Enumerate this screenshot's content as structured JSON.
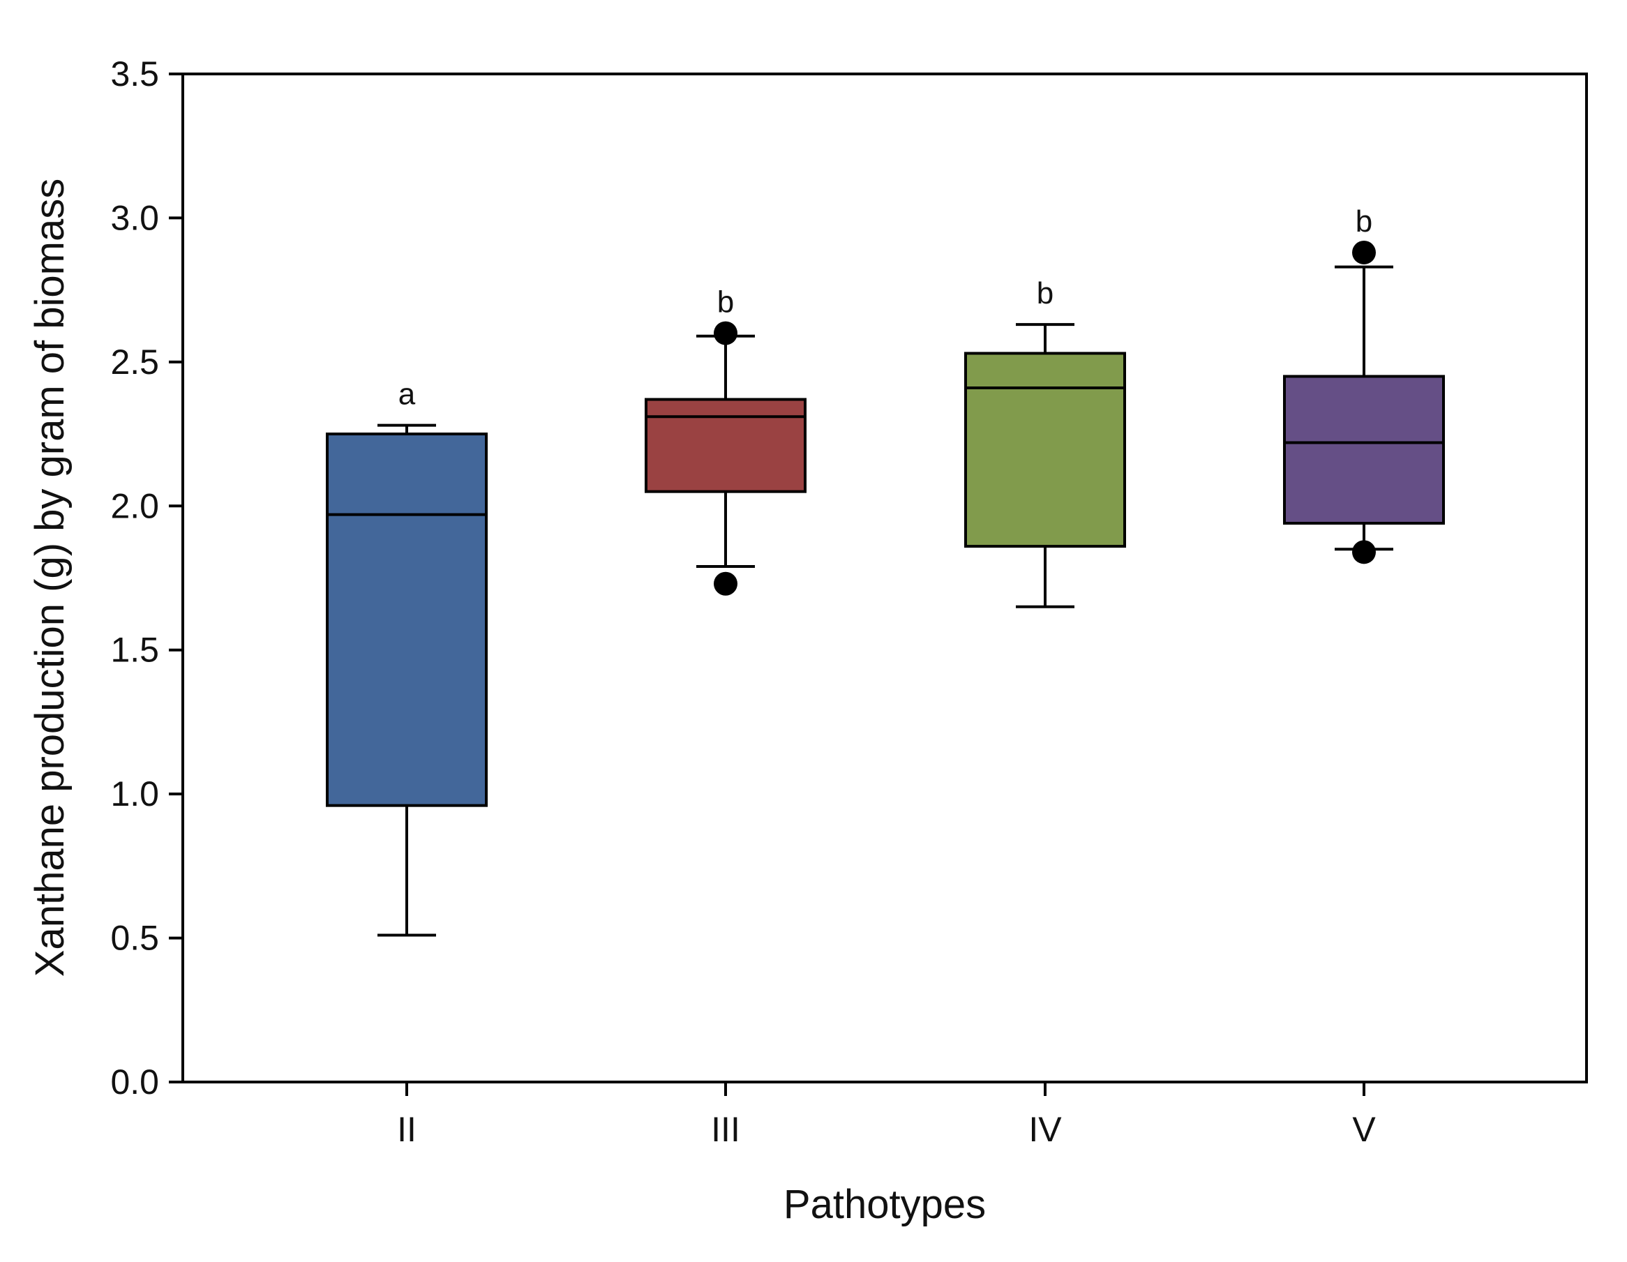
{
  "chart_data": {
    "type": "boxplot",
    "title": "",
    "xlabel": "Pathotypes",
    "ylabel": "Xanthane production (g) by gram of biomass",
    "ylim": [
      0,
      3.5
    ],
    "yticks": [
      {
        "value": 0.0,
        "label": "0.0"
      },
      {
        "value": 0.5,
        "label": "0.5"
      },
      {
        "value": 1.0,
        "label": "1.0"
      },
      {
        "value": 1.5,
        "label": "1.5"
      },
      {
        "value": 2.0,
        "label": "2.0"
      },
      {
        "value": 2.5,
        "label": "2.5"
      },
      {
        "value": 3.0,
        "label": "3.0"
      },
      {
        "value": 3.5,
        "label": "3.5"
      }
    ],
    "categories": [
      "II",
      "III",
      "IV",
      "V"
    ],
    "grid": false,
    "legend": "none",
    "boxes": [
      {
        "category": "II",
        "whisker_low": 0.51,
        "q1": 0.96,
        "median": 1.97,
        "q3": 2.25,
        "whisker_high": 2.28,
        "outliers": [],
        "color": "#43679A",
        "significance": "a"
      },
      {
        "category": "III",
        "whisker_low": 1.79,
        "q1": 2.05,
        "median": 2.31,
        "q3": 2.37,
        "whisker_high": 2.59,
        "outliers": [
          1.73,
          2.6
        ],
        "color": "#9A4242",
        "significance": "b"
      },
      {
        "category": "IV",
        "whisker_low": 1.65,
        "q1": 1.86,
        "median": 2.41,
        "q3": 2.53,
        "whisker_high": 2.63,
        "outliers": [],
        "color": "#819B4C",
        "significance": "b"
      },
      {
        "category": "V",
        "whisker_low": 1.85,
        "q1": 1.94,
        "median": 2.22,
        "q3": 2.45,
        "whisker_high": 2.83,
        "outliers": [
          1.84,
          2.88
        ],
        "color": "#654F86",
        "significance": "b"
      }
    ]
  }
}
